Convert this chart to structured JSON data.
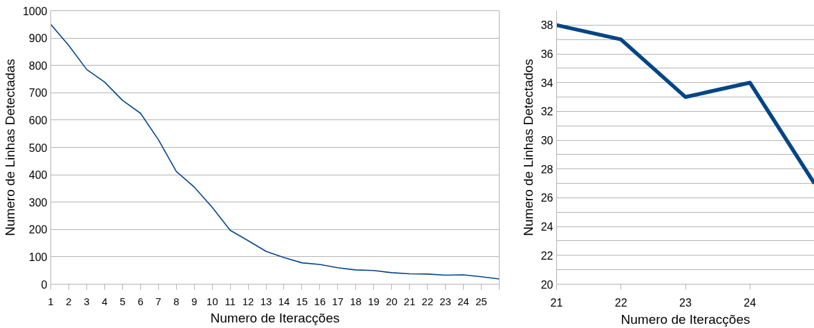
{
  "chart_data": [
    {
      "type": "line",
      "xlabel": "Numero de Iteracções",
      "ylabel": "Numero de Linhas Detectadas",
      "x": [
        1,
        2,
        3,
        4,
        5,
        6,
        7,
        8,
        9,
        10,
        11,
        12,
        13,
        14,
        15,
        16,
        17,
        18,
        19,
        20,
        21,
        22,
        23,
        24,
        25,
        26
      ],
      "series": [
        {
          "color": "#004586",
          "values": [
            950,
            873,
            785,
            739,
            672,
            625,
            528,
            412,
            355,
            281,
            197,
            159,
            120,
            97,
            78,
            72,
            60,
            52,
            50,
            42,
            38,
            37,
            33,
            34,
            27,
            19
          ]
        }
      ],
      "xlim": [
        1,
        26
      ],
      "xticks": [
        1,
        2,
        3,
        4,
        5,
        6,
        7,
        8,
        9,
        10,
        11,
        12,
        13,
        14,
        15,
        16,
        17,
        18,
        19,
        20,
        21,
        22,
        23,
        24,
        25,
        {
          "value": 26,
          "label": null
        }
      ],
      "ylim": [
        0,
        1000
      ],
      "yticks": [
        0,
        100,
        200,
        300,
        400,
        500,
        600,
        700,
        800,
        900,
        1000
      ],
      "grid": "y"
    },
    {
      "type": "line",
      "xlabel": "Numero de Iteracções",
      "ylabel": "Numero de Linhas Detectados",
      "x": [
        21,
        22,
        23,
        24,
        25
      ],
      "series": [
        {
          "color": "#004586",
          "values": [
            38,
            37,
            33,
            34,
            27
          ]
        }
      ],
      "xlim": [
        21,
        25
      ],
      "xticks": [
        21,
        22,
        23,
        24
      ],
      "ylim": [
        20,
        39
      ],
      "yticks": [
        20,
        {
          "value": 21,
          "label": null
        },
        22,
        {
          "value": 23,
          "label": null
        },
        24,
        {
          "value": 25,
          "label": null
        },
        26,
        {
          "value": 27,
          "label": null
        },
        28,
        {
          "value": 29,
          "label": null
        },
        30,
        {
          "value": 31,
          "label": null
        },
        32,
        {
          "value": 33,
          "label": null
        },
        34,
        {
          "value": 35,
          "label": null
        },
        36,
        {
          "value": 37,
          "label": null
        },
        38
      ],
      "grid": "y"
    }
  ]
}
